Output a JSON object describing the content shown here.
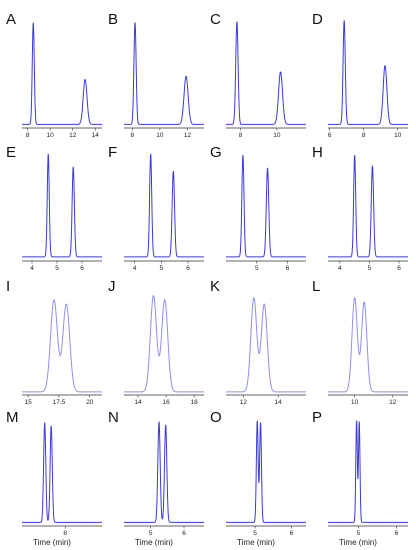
{
  "colors": {
    "dark_trace": "#3b3bd6",
    "light_trace": "#8f8ff0",
    "axis": "#333333"
  },
  "chart_data": [
    {
      "type": "line",
      "letter": "A",
      "xlim": [
        7.5,
        14.6
      ],
      "ticks": [
        8,
        10,
        12,
        14
      ],
      "tick_labels": [
        "8",
        "10",
        "12",
        "14"
      ],
      "peaks": [
        [
          8.5,
          0.95,
          0.09
        ],
        [
          13.1,
          0.42,
          0.17
        ]
      ],
      "baseline": 0.015,
      "xlabel": ""
    },
    {
      "type": "line",
      "letter": "B",
      "xlim": [
        7.4,
        13.2
      ],
      "ticks": [
        8,
        10,
        12
      ],
      "tick_labels": [
        "8",
        "10",
        "12"
      ],
      "peaks": [
        [
          8.2,
          0.95,
          0.08
        ],
        [
          11.9,
          0.45,
          0.15
        ]
      ],
      "baseline": 0.015,
      "xlabel": ""
    },
    {
      "type": "line",
      "letter": "C",
      "xlim": [
        7.2,
        11.6
      ],
      "ticks": [
        8,
        10
      ],
      "tick_labels": [
        "8",
        "10"
      ],
      "peaks": [
        [
          7.8,
          0.96,
          0.065
        ],
        [
          10.2,
          0.49,
          0.11
        ]
      ],
      "baseline": 0.015,
      "xlabel": ""
    },
    {
      "type": "line",
      "letter": "D",
      "xlim": [
        5.9,
        10.6
      ],
      "ticks": [
        6,
        8,
        10
      ],
      "tick_labels": [
        "6",
        "8",
        "10"
      ],
      "peaks": [
        [
          6.85,
          0.97,
          0.065
        ],
        [
          9.25,
          0.55,
          0.11
        ]
      ],
      "baseline": 0.015,
      "xlabel": ""
    },
    {
      "type": "line",
      "letter": "E",
      "xlim": [
        3.6,
        6.8
      ],
      "ticks": [
        4,
        5,
        6
      ],
      "tick_labels": [
        "4",
        "5",
        "6"
      ],
      "peaks": [
        [
          4.65,
          0.96,
          0.04
        ],
        [
          5.65,
          0.84,
          0.045
        ]
      ],
      "baseline": 0.02,
      "xlabel": ""
    },
    {
      "type": "line",
      "letter": "F",
      "xlim": [
        3.6,
        6.6
      ],
      "ticks": [
        4,
        5,
        6
      ],
      "tick_labels": [
        "4",
        "5",
        "6"
      ],
      "peaks": [
        [
          4.6,
          0.96,
          0.04
        ],
        [
          5.45,
          0.8,
          0.045
        ]
      ],
      "baseline": 0.02,
      "xlabel": ""
    },
    {
      "type": "line",
      "letter": "G",
      "xlim": [
        4.0,
        6.6
      ],
      "ticks": [
        5,
        6
      ],
      "tick_labels": [
        "5",
        "6"
      ],
      "peaks": [
        [
          4.55,
          0.95,
          0.035
        ],
        [
          5.35,
          0.83,
          0.04
        ]
      ],
      "baseline": 0.02,
      "xlabel": ""
    },
    {
      "type": "line",
      "letter": "H",
      "xlim": [
        3.6,
        6.3
      ],
      "ticks": [
        4,
        5,
        6
      ],
      "tick_labels": [
        "4",
        "5",
        "6"
      ],
      "peaks": [
        [
          4.5,
          0.95,
          0.035
        ],
        [
          5.1,
          0.85,
          0.04
        ]
      ],
      "baseline": 0.02,
      "xlabel": ""
    },
    {
      "type": "line",
      "letter": "I",
      "xlim": [
        14.5,
        21.0
      ],
      "ticks": [
        15,
        17.5,
        20
      ],
      "tick_labels": [
        "15",
        "17.5",
        "20"
      ],
      "peaks": [
        [
          17.1,
          0.86,
          0.28
        ],
        [
          18.1,
          0.82,
          0.28
        ]
      ],
      "baseline": 0.01,
      "xlabel": ""
    },
    {
      "type": "line",
      "letter": "J",
      "xlim": [
        13.0,
        18.7
      ],
      "ticks": [
        14,
        16,
        18
      ],
      "tick_labels": [
        "14",
        "16",
        "18"
      ],
      "peaks": [
        [
          15.1,
          0.9,
          0.22
        ],
        [
          15.9,
          0.86,
          0.22
        ]
      ],
      "baseline": 0.01,
      "xlabel": ""
    },
    {
      "type": "line",
      "letter": "K",
      "xlim": [
        11.0,
        15.6
      ],
      "ticks": [
        12,
        14
      ],
      "tick_labels": [
        "12",
        "14"
      ],
      "peaks": [
        [
          12.6,
          0.88,
          0.17
        ],
        [
          13.2,
          0.82,
          0.17
        ]
      ],
      "baseline": 0.01,
      "xlabel": ""
    },
    {
      "type": "line",
      "letter": "L",
      "xlim": [
        8.6,
        12.8
      ],
      "ticks": [
        10,
        12
      ],
      "tick_labels": [
        "10",
        "12"
      ],
      "peaks": [
        [
          10.0,
          0.88,
          0.14
        ],
        [
          10.5,
          0.84,
          0.14
        ]
      ],
      "baseline": 0.01,
      "xlabel": ""
    },
    {
      "type": "line",
      "letter": "M",
      "xlim": [
        6.0,
        9.7
      ],
      "ticks": [
        8
      ],
      "tick_labels": [
        "8"
      ],
      "peaks": [
        [
          7.05,
          0.93,
          0.05
        ],
        [
          7.35,
          0.9,
          0.05
        ]
      ],
      "baseline": 0.015,
      "xlabel": "Time (min)"
    },
    {
      "type": "line",
      "letter": "N",
      "xlim": [
        4.2,
        6.6
      ],
      "ticks": [
        5,
        6
      ],
      "tick_labels": [
        "5",
        "6"
      ],
      "peaks": [
        [
          5.25,
          0.94,
          0.035
        ],
        [
          5.45,
          0.91,
          0.035
        ]
      ],
      "baseline": 0.015,
      "xlabel": "Time (min)"
    },
    {
      "type": "line",
      "letter": "O",
      "xlim": [
        4.2,
        6.4
      ],
      "ticks": [
        5,
        6
      ],
      "tick_labels": [
        "5",
        "6"
      ],
      "peaks": [
        [
          5.06,
          0.95,
          0.025
        ],
        [
          5.15,
          0.93,
          0.025
        ]
      ],
      "baseline": 0.015,
      "xlabel": "Time (min)"
    },
    {
      "type": "line",
      "letter": "P",
      "xlim": [
        4.2,
        6.3
      ],
      "ticks": [
        5,
        6
      ],
      "tick_labels": [
        "5",
        "6"
      ],
      "peaks": [
        [
          4.95,
          0.95,
          0.02
        ],
        [
          5.02,
          0.94,
          0.02
        ]
      ],
      "baseline": 0.015,
      "xlabel": "Time (min)"
    }
  ]
}
